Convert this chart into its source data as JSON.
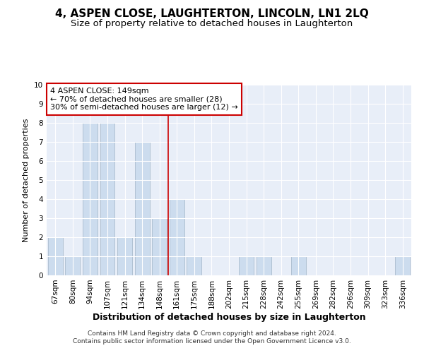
{
  "title": "4, ASPEN CLOSE, LAUGHTERTON, LINCOLN, LN1 2LQ",
  "subtitle": "Size of property relative to detached houses in Laughterton",
  "xlabel": "Distribution of detached houses by size in Laughterton",
  "ylabel": "Number of detached properties",
  "categories": [
    "67sqm",
    "80sqm",
    "94sqm",
    "107sqm",
    "121sqm",
    "134sqm",
    "148sqm",
    "161sqm",
    "175sqm",
    "188sqm",
    "202sqm",
    "215sqm",
    "228sqm",
    "242sqm",
    "255sqm",
    "269sqm",
    "282sqm",
    "296sqm",
    "309sqm",
    "323sqm",
    "336sqm"
  ],
  "values": [
    2,
    1,
    8,
    8,
    2,
    7,
    3,
    4,
    1,
    0,
    0,
    1,
    1,
    0,
    1,
    0,
    0,
    0,
    0,
    0,
    1
  ],
  "bar_color": "#ccdcee",
  "bar_edge_color": "#aabcce",
  "subject_line_index": 6,
  "subject_line_color": "#cc0000",
  "annotation_text": "4 ASPEN CLOSE: 149sqm\n← 70% of detached houses are smaller (28)\n30% of semi-detached houses are larger (12) →",
  "annotation_box_edge": "#cc0000",
  "ylim": [
    0,
    10
  ],
  "yticks": [
    0,
    1,
    2,
    3,
    4,
    5,
    6,
    7,
    8,
    9,
    10
  ],
  "background_color": "#e8eef8",
  "footer_line1": "Contains HM Land Registry data © Crown copyright and database right 2024.",
  "footer_line2": "Contains public sector information licensed under the Open Government Licence v3.0.",
  "title_fontsize": 11,
  "subtitle_fontsize": 9.5,
  "xlabel_fontsize": 9,
  "ylabel_fontsize": 8,
  "tick_fontsize": 7.5,
  "annotation_fontsize": 8,
  "footer_fontsize": 6.5
}
